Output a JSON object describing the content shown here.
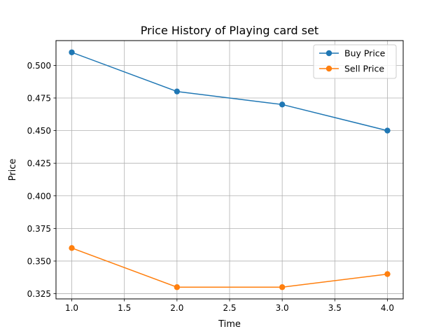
{
  "chart_data": {
    "type": "line",
    "title": "Price History of Playing card set",
    "xlabel": "Time",
    "ylabel": "Price",
    "x": [
      1.0,
      2.0,
      3.0,
      4.0
    ],
    "xlim": [
      0.85,
      4.15
    ],
    "ylim": [
      0.321,
      0.519
    ],
    "xticks": [
      1.0,
      1.5,
      2.0,
      2.5,
      3.0,
      3.5,
      4.0
    ],
    "xtick_labels": [
      "1.0",
      "1.5",
      "2.0",
      "2.5",
      "3.0",
      "3.5",
      "4.0"
    ],
    "yticks": [
      0.325,
      0.35,
      0.375,
      0.4,
      0.425,
      0.45,
      0.475,
      0.5
    ],
    "ytick_labels": [
      "0.325",
      "0.350",
      "0.375",
      "0.400",
      "0.425",
      "0.450",
      "0.475",
      "0.500"
    ],
    "grid": true,
    "legend_position": "top-right",
    "series": [
      {
        "name": "Buy Price",
        "values": [
          0.51,
          0.48,
          0.47,
          0.45
        ],
        "color": "#1f77b4",
        "marker": "circle"
      },
      {
        "name": "Sell Price",
        "values": [
          0.36,
          0.33,
          0.33,
          0.34
        ],
        "color": "#ff7f0e",
        "marker": "circle"
      }
    ]
  }
}
